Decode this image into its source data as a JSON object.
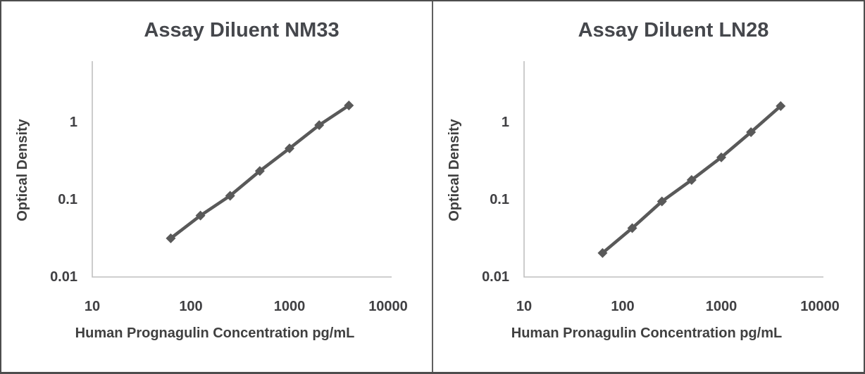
{
  "figure": {
    "background": "#ffffff",
    "border_color": "#4d4d4d",
    "divider_color": "#606060"
  },
  "chart_data": [
    {
      "type": "line",
      "title": "Assay Diluent NM33",
      "xlabel": "Human Prognagulin Concentration pg/mL",
      "ylabel": "Optical Density",
      "x_scale": "log",
      "y_scale": "log",
      "xlim": [
        10,
        10000
      ],
      "ylim": [
        0.01,
        6
      ],
      "x_ticks": [
        "10",
        "100",
        "1000",
        "10000"
      ],
      "y_ticks": [
        "1",
        "0.1",
        "0.01"
      ],
      "grid": false,
      "legend": "none",
      "marker": "diamond",
      "series_color": "#595959",
      "axis_color": "#bfbfbf",
      "x": [
        62.5,
        125,
        250,
        500,
        1000,
        2000,
        4000
      ],
      "y": [
        0.031,
        0.061,
        0.11,
        0.23,
        0.45,
        0.9,
        1.62
      ]
    },
    {
      "type": "line",
      "title": "Assay Diluent LN28",
      "xlabel": "Human Pronagulin Concentration pg/mL",
      "ylabel": "Optical Density",
      "x_scale": "log",
      "y_scale": "log",
      "xlim": [
        10,
        10000
      ],
      "ylim": [
        0.01,
        6
      ],
      "x_ticks": [
        "10",
        "100",
        "1000",
        "10000"
      ],
      "y_ticks": [
        "1",
        "0.1",
        "0.01"
      ],
      "grid": false,
      "legend": "none",
      "marker": "diamond",
      "series_color": "#595959",
      "axis_color": "#bfbfbf",
      "x": [
        62.5,
        125,
        250,
        500,
        1000,
        2000,
        4000
      ],
      "y": [
        0.02,
        0.042,
        0.093,
        0.176,
        0.345,
        0.73,
        1.59
      ]
    }
  ]
}
